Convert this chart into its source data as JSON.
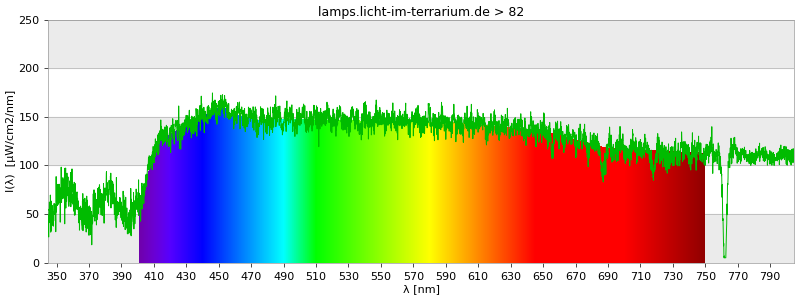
{
  "title": "lamps.licht-im-terrarium.de > 82",
  "xlabel": "λ [nm]",
  "ylabel": "I(λ)  [µW/cm2/nm]",
  "xlim": [
    345,
    805
  ],
  "ylim": [
    0,
    250
  ],
  "yticks": [
    0,
    50,
    100,
    150,
    200,
    250
  ],
  "xticks": [
    350,
    370,
    390,
    410,
    430,
    450,
    470,
    490,
    510,
    530,
    550,
    570,
    590,
    610,
    630,
    650,
    670,
    690,
    710,
    730,
    750,
    770,
    790
  ],
  "spectrum_start_nm": 401,
  "spectrum_end_nm": 750,
  "line_color": "#00bb00",
  "title_fontsize": 9,
  "axis_fontsize": 8,
  "tick_fontsize": 8,
  "fig_width": 8.0,
  "fig_height": 3.0,
  "dpi": 100
}
